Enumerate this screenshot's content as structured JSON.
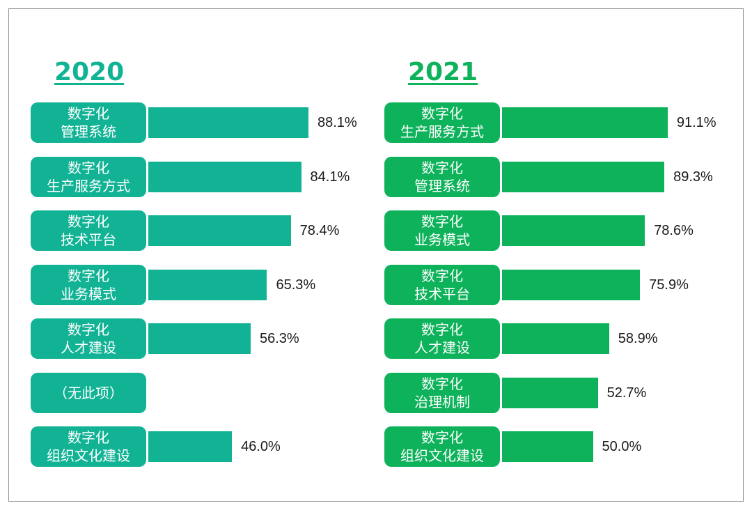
{
  "colors": {
    "teal": "#12b395",
    "green": "#0db25a"
  },
  "chart_data": [
    {
      "type": "bar",
      "orientation": "horizontal",
      "title": "2020",
      "color": "#12b395",
      "categories": [
        [
          "数字化",
          "管理系统"
        ],
        [
          "数字化",
          "生产服务方式"
        ],
        [
          "数字化",
          "技术平台"
        ],
        [
          "数字化",
          "业务模式"
        ],
        [
          "数字化",
          "人才建设"
        ],
        [
          "（无此项）"
        ],
        [
          "数字化",
          "组织文化建设"
        ]
      ],
      "values": [
        88.1,
        84.1,
        78.4,
        65.3,
        56.3,
        null,
        46.0
      ],
      "value_labels": [
        "88.1%",
        "84.1%",
        "78.4%",
        "65.3%",
        "56.3%",
        "",
        "46.0%"
      ],
      "xlim": [
        0,
        100
      ]
    },
    {
      "type": "bar",
      "orientation": "horizontal",
      "title": "2021",
      "color": "#0db25a",
      "categories": [
        [
          "数字化",
          "生产服务方式"
        ],
        [
          "数字化",
          "管理系统"
        ],
        [
          "数字化",
          "业务模式"
        ],
        [
          "数字化",
          "技术平台"
        ],
        [
          "数字化",
          "人才建设"
        ],
        [
          "数字化",
          "治理机制"
        ],
        [
          "数字化",
          "组织文化建设"
        ]
      ],
      "values": [
        91.1,
        89.3,
        78.6,
        75.9,
        58.9,
        52.7,
        50.0
      ],
      "value_labels": [
        "91.1%",
        "89.3%",
        "78.6%",
        "75.9%",
        "58.9%",
        "52.7%",
        "50.0%"
      ],
      "xlim": [
        0,
        100
      ]
    }
  ]
}
